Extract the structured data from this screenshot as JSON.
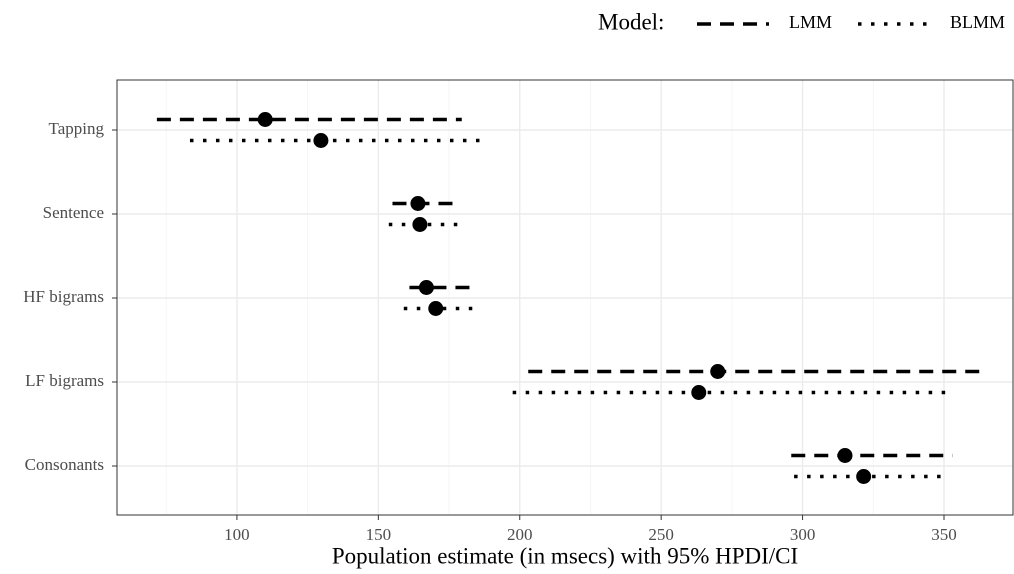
{
  "chart_data": {
    "type": "interval",
    "xlabel": "Population estimate (in msecs) with 95% HPDI/CI",
    "legend_title": "Model:",
    "legend_position": "top-right",
    "categories": [
      "Tapping",
      "Sentence",
      "HF bigrams",
      "LF bigrams",
      "Consonants"
    ],
    "series": [
      {
        "name": "LMM",
        "color": "#000000",
        "linestyle": "dashed",
        "values": [
          110,
          164,
          167,
          270,
          315
        ],
        "lower": [
          71.7,
          155,
          161,
          203,
          296
        ],
        "upper": [
          179.5,
          178,
          184.5,
          363.6,
          353
        ]
      },
      {
        "name": "BLMM",
        "color": "#000000",
        "linestyle": "dotted",
        "values": [
          129.7,
          164.7,
          170.3,
          263.3,
          321.6
        ],
        "lower": [
          83.4,
          153.7,
          159,
          197.5,
          297
        ],
        "upper": [
          188,
          178,
          183.7,
          353,
          350
        ]
      }
    ],
    "xlim": [
      57.6,
      374.4
    ],
    "xticks": [
      100,
      150,
      200,
      250,
      300,
      350
    ],
    "grid": true
  }
}
